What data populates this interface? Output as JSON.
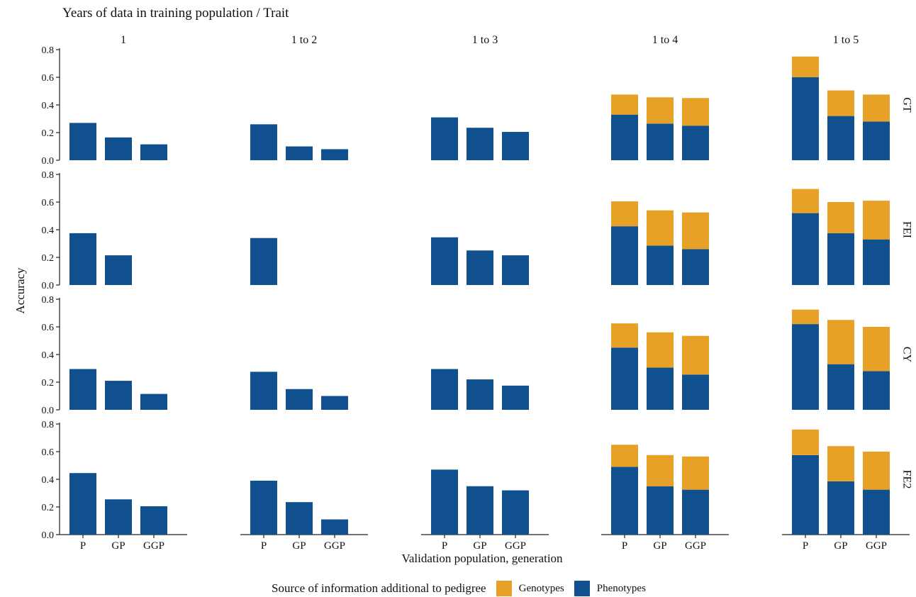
{
  "chart_data": {
    "type": "bar",
    "stacked": true,
    "title": "Years of data in training population / Trait",
    "xlabel": "Validation population, generation",
    "ylabel": "Accuracy",
    "ylim": [
      0,
      0.8
    ],
    "yticks": [
      "0.0",
      "0.2",
      "0.4",
      "0.6",
      "0.8"
    ],
    "categories": [
      "P",
      "GP",
      "GGP"
    ],
    "column_facets": [
      "1",
      "1 to 2",
      "1 to 3",
      "1 to 4",
      "1 to 5"
    ],
    "row_facets": [
      "GT",
      "FEI",
      "CY",
      "FE2"
    ],
    "legend": {
      "title": "Source of information additional to pedigree",
      "position": "bottom",
      "entries": [
        {
          "name": "Genotypes",
          "color": "#E8A127"
        },
        {
          "name": "Phenotypes",
          "color": "#10508F"
        }
      ]
    },
    "panels": [
      {
        "row": "GT",
        "col": "1",
        "phenotypes": [
          0.27,
          0.165,
          0.115
        ],
        "genotypes": [
          0,
          0,
          0
        ]
      },
      {
        "row": "GT",
        "col": "1 to 2",
        "phenotypes": [
          0.26,
          0.1,
          0.08
        ],
        "genotypes": [
          0,
          0,
          0
        ]
      },
      {
        "row": "GT",
        "col": "1 to 3",
        "phenotypes": [
          0.31,
          0.235,
          0.205
        ],
        "genotypes": [
          0,
          0,
          0
        ]
      },
      {
        "row": "GT",
        "col": "1 to 4",
        "phenotypes": [
          0.33,
          0.265,
          0.25
        ],
        "genotypes": [
          0.145,
          0.19,
          0.2
        ]
      },
      {
        "row": "GT",
        "col": "1 to 5",
        "phenotypes": [
          0.6,
          0.32,
          0.28
        ],
        "genotypes": [
          0.15,
          0.185,
          0.195
        ]
      },
      {
        "row": "FEI",
        "col": "1",
        "phenotypes": [
          0.375,
          0.215,
          null
        ],
        "genotypes": [
          0,
          0,
          0
        ]
      },
      {
        "row": "FEI",
        "col": "1 to 2",
        "phenotypes": [
          0.34,
          null,
          null
        ],
        "genotypes": [
          0,
          0,
          0
        ]
      },
      {
        "row": "FEI",
        "col": "1 to 3",
        "phenotypes": [
          0.345,
          0.25,
          0.215
        ],
        "genotypes": [
          0,
          0,
          0
        ]
      },
      {
        "row": "FEI",
        "col": "1 to 4",
        "phenotypes": [
          0.425,
          0.285,
          0.26
        ],
        "genotypes": [
          0.18,
          0.255,
          0.265
        ]
      },
      {
        "row": "FEI",
        "col": "1 to 5",
        "phenotypes": [
          0.52,
          0.375,
          0.33
        ],
        "genotypes": [
          0.175,
          0.225,
          0.28
        ]
      },
      {
        "row": "CY",
        "col": "1",
        "phenotypes": [
          0.295,
          0.21,
          0.115
        ],
        "genotypes": [
          0,
          0,
          0
        ]
      },
      {
        "row": "CY",
        "col": "1 to 2",
        "phenotypes": [
          0.275,
          0.15,
          0.1
        ],
        "genotypes": [
          0,
          0,
          0
        ]
      },
      {
        "row": "CY",
        "col": "1 to 3",
        "phenotypes": [
          0.295,
          0.22,
          0.175
        ],
        "genotypes": [
          0,
          0,
          0
        ]
      },
      {
        "row": "CY",
        "col": "1 to 4",
        "phenotypes": [
          0.45,
          0.305,
          0.255
        ],
        "genotypes": [
          0.175,
          0.255,
          0.28
        ]
      },
      {
        "row": "CY",
        "col": "1 to 5",
        "phenotypes": [
          0.62,
          0.33,
          0.28
        ],
        "genotypes": [
          0.105,
          0.32,
          0.32
        ]
      },
      {
        "row": "FE2",
        "col": "1",
        "phenotypes": [
          0.445,
          0.255,
          0.205
        ],
        "genotypes": [
          0,
          0,
          0
        ]
      },
      {
        "row": "FE2",
        "col": "1 to 2",
        "phenotypes": [
          0.39,
          0.235,
          0.11
        ],
        "genotypes": [
          0,
          0,
          0
        ]
      },
      {
        "row": "FE2",
        "col": "1 to 3",
        "phenotypes": [
          0.47,
          0.35,
          0.32
        ],
        "genotypes": [
          0,
          0,
          0
        ]
      },
      {
        "row": "FE2",
        "col": "1 to 4",
        "phenotypes": [
          0.49,
          0.35,
          0.325
        ],
        "genotypes": [
          0.16,
          0.225,
          0.24
        ]
      },
      {
        "row": "FE2",
        "col": "1 to 5",
        "phenotypes": [
          0.575,
          0.385,
          0.325
        ],
        "genotypes": [
          0.185,
          0.255,
          0.275
        ]
      }
    ]
  }
}
